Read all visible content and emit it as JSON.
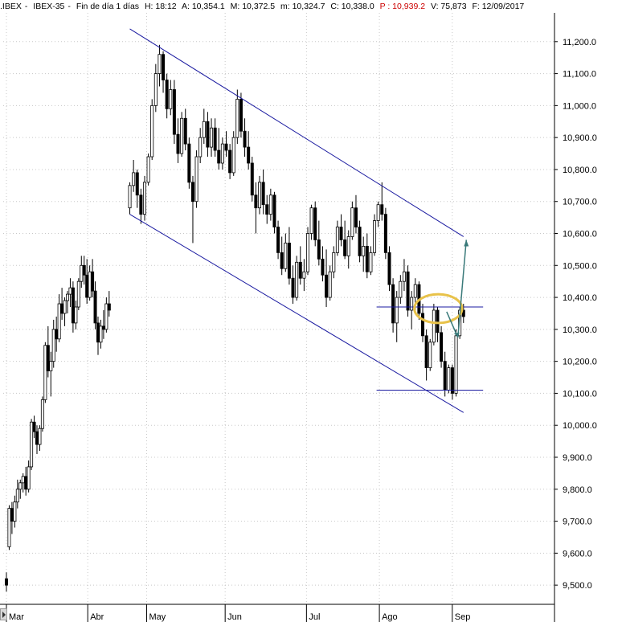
{
  "header": {
    "symbol": ".IBEX",
    "name": "IBEX-35",
    "period": "Fin de día 1 días",
    "time": "H: 18:12",
    "open": "A: 10,354.1",
    "high": "M: 10,372.5",
    "low": "m: 10,324.7",
    "close": "C: 10,338.0",
    "p": "P : 10,939.2",
    "volume": "V: 75,873",
    "date": "F: 12/09/2017"
  },
  "chart_data": {
    "type": "candlestick",
    "title": "",
    "xlabel": "",
    "ylabel": "",
    "ylim": [
      9440,
      11290
    ],
    "y_ticks": [
      9500,
      9600,
      9700,
      9800,
      9900,
      10000,
      10100,
      10200,
      10300,
      10400,
      10500,
      10600,
      10700,
      10800,
      10900,
      11000,
      11100,
      11200
    ],
    "y_tick_labels": [
      "9,500.0",
      "9,600.0",
      "9,700.0",
      "9,800.0",
      "9,900.0",
      "10,000.0",
      "10,100.0",
      "10,200.0",
      "10,300.0",
      "10,400.0",
      "10,500.0",
      "10,600.0",
      "10,700.0",
      "10,800.0",
      "10,900.0",
      "11,000.0",
      "11,100.0",
      "11,200.0"
    ],
    "x_range": [
      0,
      188
    ],
    "months": [
      {
        "label": "Mar",
        "index": 0
      },
      {
        "label": "Abr",
        "index": 29
      },
      {
        "label": "May",
        "index": 50
      },
      {
        "label": "Jun",
        "index": 78
      },
      {
        "label": "Jul",
        "index": 107
      },
      {
        "label": "Ago",
        "index": 133
      },
      {
        "label": "Sep",
        "index": 159
      }
    ],
    "grid": true,
    "ohlc": [
      [
        9520,
        9540,
        9480,
        9500
      ],
      [
        9620,
        9750,
        9610,
        9740
      ],
      [
        9740,
        9760,
        9660,
        9700
      ],
      [
        9700,
        9780,
        9680,
        9760
      ],
      [
        9760,
        9830,
        9740,
        9800
      ],
      [
        9800,
        9830,
        9770,
        9820
      ],
      [
        9820,
        9850,
        9790,
        9840
      ],
      [
        9840,
        9870,
        9780,
        9800
      ],
      [
        9800,
        9890,
        9790,
        9870
      ],
      [
        9870,
        10020,
        9860,
        10010
      ],
      [
        10010,
        10030,
        9960,
        9980
      ],
      [
        9980,
        10000,
        9910,
        9940
      ],
      [
        9940,
        10000,
        9920,
        9990
      ],
      [
        9990,
        10090,
        9980,
        10080
      ],
      [
        10080,
        10260,
        10070,
        10250
      ],
      [
        10250,
        10310,
        10150,
        10170
      ],
      [
        10170,
        10230,
        10090,
        10200
      ],
      [
        10200,
        10330,
        10180,
        10300
      ],
      [
        10300,
        10340,
        10230,
        10270
      ],
      [
        10270,
        10410,
        10260,
        10380
      ],
      [
        10380,
        10430,
        10330,
        10350
      ],
      [
        10350,
        10400,
        10310,
        10390
      ],
      [
        10390,
        10420,
        10350,
        10410
      ],
      [
        10410,
        10460,
        10370,
        10430
      ],
      [
        10430,
        10450,
        10290,
        10320
      ],
      [
        10320,
        10390,
        10300,
        10370
      ],
      [
        10370,
        10460,
        10360,
        10450
      ],
      [
        10450,
        10530,
        10430,
        10500
      ],
      [
        10500,
        10530,
        10440,
        10470
      ],
      [
        10470,
        10520,
        10380,
        10400
      ],
      [
        10400,
        10500,
        10390,
        10480
      ],
      [
        10480,
        10520,
        10400,
        10420
      ],
      [
        10420,
        10450,
        10300,
        10320
      ],
      [
        10320,
        10340,
        10220,
        10260
      ],
      [
        10260,
        10330,
        10240,
        10310
      ],
      [
        10310,
        10360,
        10270,
        10300
      ],
      [
        10300,
        10400,
        10290,
        10380
      ],
      [
        10380,
        10420,
        10340,
        10360
      ],
      [
        10680,
        10760,
        10660,
        10750
      ],
      [
        10750,
        10830,
        10730,
        10790
      ],
      [
        10790,
        10800,
        10680,
        10720
      ],
      [
        10720,
        10740,
        10630,
        10660
      ],
      [
        10660,
        10780,
        10640,
        10760
      ],
      [
        10760,
        10850,
        10750,
        10840
      ],
      [
        10840,
        11020,
        10830,
        11000
      ],
      [
        11000,
        11130,
        10980,
        11100
      ],
      [
        11100,
        11190,
        11060,
        11160
      ],
      [
        11160,
        11170,
        11040,
        11080
      ],
      [
        11080,
        11100,
        10960,
        10990
      ],
      [
        10990,
        11080,
        10970,
        11050
      ],
      [
        11050,
        11080,
        10880,
        10910
      ],
      [
        10910,
        10960,
        10820,
        10850
      ],
      [
        10850,
        10980,
        10840,
        10960
      ],
      [
        10960,
        10990,
        10860,
        10880
      ],
      [
        10880,
        10900,
        10740,
        10760
      ],
      [
        10760,
        10780,
        10570,
        10700
      ],
      [
        10700,
        10860,
        10680,
        10840
      ],
      [
        10840,
        10930,
        10820,
        10900
      ],
      [
        10900,
        10990,
        10880,
        10950
      ],
      [
        10950,
        10980,
        10840,
        10870
      ],
      [
        10870,
        10960,
        10840,
        10930
      ],
      [
        10930,
        10960,
        10840,
        10860
      ],
      [
        10860,
        10930,
        10800,
        10820
      ],
      [
        10820,
        10900,
        10800,
        10880
      ],
      [
        10880,
        10920,
        10840,
        10860
      ],
      [
        10860,
        10880,
        10770,
        10790
      ],
      [
        10790,
        10920,
        10780,
        10900
      ],
      [
        10900,
        11050,
        10880,
        11020
      ],
      [
        11020,
        11040,
        10900,
        10920
      ],
      [
        10920,
        10960,
        10840,
        10870
      ],
      [
        10870,
        10920,
        10800,
        10820
      ],
      [
        10820,
        10840,
        10700,
        10720
      ],
      [
        10720,
        10760,
        10600,
        10680
      ],
      [
        10680,
        10780,
        10660,
        10760
      ],
      [
        10760,
        10800,
        10660,
        10690
      ],
      [
        10690,
        10720,
        10630,
        10660
      ],
      [
        10660,
        10740,
        10640,
        10720
      ],
      [
        10720,
        10730,
        10600,
        10620
      ],
      [
        10620,
        10640,
        10520,
        10540
      ],
      [
        10540,
        10590,
        10470,
        10490
      ],
      [
        10490,
        10600,
        10480,
        10570
      ],
      [
        10570,
        10620,
        10440,
        10460
      ],
      [
        10460,
        10500,
        10380,
        10400
      ],
      [
        10400,
        10530,
        10390,
        10510
      ],
      [
        10510,
        10560,
        10440,
        10460
      ],
      [
        10460,
        10520,
        10420,
        10480
      ],
      [
        10480,
        10620,
        10470,
        10600
      ],
      [
        10600,
        10690,
        10580,
        10680
      ],
      [
        10680,
        10700,
        10560,
        10580
      ],
      [
        10580,
        10640,
        10500,
        10520
      ],
      [
        10520,
        10560,
        10450,
        10470
      ],
      [
        10470,
        10550,
        10370,
        10400
      ],
      [
        10400,
        10500,
        10390,
        10480
      ],
      [
        10480,
        10560,
        10460,
        10540
      ],
      [
        10540,
        10640,
        10530,
        10620
      ],
      [
        10620,
        10660,
        10560,
        10580
      ],
      [
        10580,
        10640,
        10520,
        10530
      ],
      [
        10530,
        10610,
        10490,
        10590
      ],
      [
        10590,
        10700,
        10580,
        10680
      ],
      [
        10680,
        10720,
        10600,
        10620
      ],
      [
        10620,
        10640,
        10510,
        10530
      ],
      [
        10530,
        10590,
        10480,
        10560
      ],
      [
        10560,
        10600,
        10460,
        10480
      ],
      [
        10480,
        10560,
        10470,
        10540
      ],
      [
        10540,
        10660,
        10530,
        10640
      ],
      [
        10640,
        10700,
        10620,
        10690
      ],
      [
        10690,
        10760,
        10640,
        10660
      ],
      [
        10660,
        10680,
        10520,
        10540
      ],
      [
        10540,
        10560,
        10420,
        10440
      ],
      [
        10440,
        10460,
        10290,
        10320
      ],
      [
        10320,
        10420,
        10260,
        10400
      ],
      [
        10400,
        10470,
        10380,
        10450
      ],
      [
        10450,
        10520,
        10420,
        10480
      ],
      [
        10480,
        10500,
        10340,
        10360
      ],
      [
        10360,
        10420,
        10300,
        10400
      ],
      [
        10400,
        10460,
        10360,
        10440
      ],
      [
        10440,
        10450,
        10330,
        10350
      ],
      [
        10350,
        10380,
        10260,
        10280
      ],
      [
        10280,
        10300,
        10140,
        10180
      ],
      [
        10180,
        10270,
        10170,
        10260
      ],
      [
        10260,
        10380,
        10250,
        10360
      ],
      [
        10360,
        10370,
        10260,
        10290
      ],
      [
        10290,
        10310,
        10180,
        10200
      ],
      [
        10200,
        10230,
        10090,
        10110
      ],
      [
        10110,
        10190,
        10100,
        10180
      ],
      [
        10180,
        10190,
        10080,
        10100
      ],
      [
        10100,
        10300,
        10090,
        10280
      ],
      [
        10280,
        10370,
        10270,
        10360
      ],
      [
        10360,
        10380,
        10320,
        10340
      ]
    ],
    "ohlc_start_index": [
      0,
      1,
      3,
      5,
      7,
      9,
      11,
      13,
      15,
      17,
      19,
      21,
      23,
      25
    ],
    "annotations": {
      "upper_channel": {
        "x1": 44,
        "y1": 11240,
        "x2": 163,
        "y2": 10590
      },
      "lower_channel": {
        "x1": 44,
        "y1": 10660,
        "x2": 163,
        "y2": 10040
      },
      "resistance": {
        "x1": 132,
        "x2": 170,
        "y": 10370
      },
      "support": {
        "x1": 132,
        "x2": 170,
        "y": 10110
      },
      "ellipse": {
        "cx": 154,
        "cy": 10365,
        "rx": 8.5,
        "ry": 45
      },
      "projection": [
        [
          157,
          10355
        ],
        [
          161,
          10275
        ],
        [
          164,
          10580
        ]
      ],
      "colors": {
        "channel": "#1a1aa0",
        "ellipse": "#e8c24a",
        "projection": "#3a7a7a",
        "candle_up": "#ffffff",
        "candle_down": "#000000",
        "grid": "#c8c8c8"
      }
    }
  }
}
